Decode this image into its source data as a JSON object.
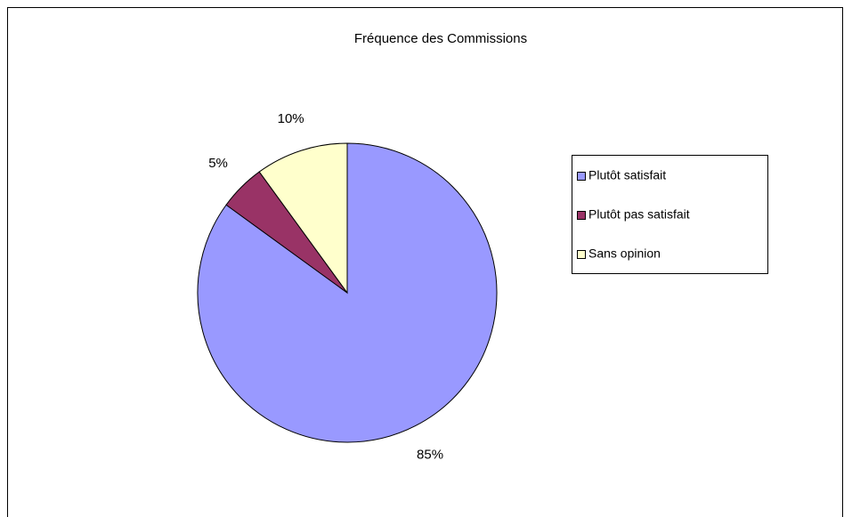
{
  "chart_data": {
    "type": "pie",
    "title": "Fréquence des Commissions",
    "categories": [
      "Plutôt satisfait",
      "Plutôt  pas satisfait",
      "Sans opinion"
    ],
    "values": [
      85,
      5,
      10
    ],
    "value_labels": [
      "85%",
      "5%",
      "10%"
    ],
    "colors": [
      "#9999ff",
      "#993366",
      "#ffffcc"
    ],
    "legend": "right"
  }
}
